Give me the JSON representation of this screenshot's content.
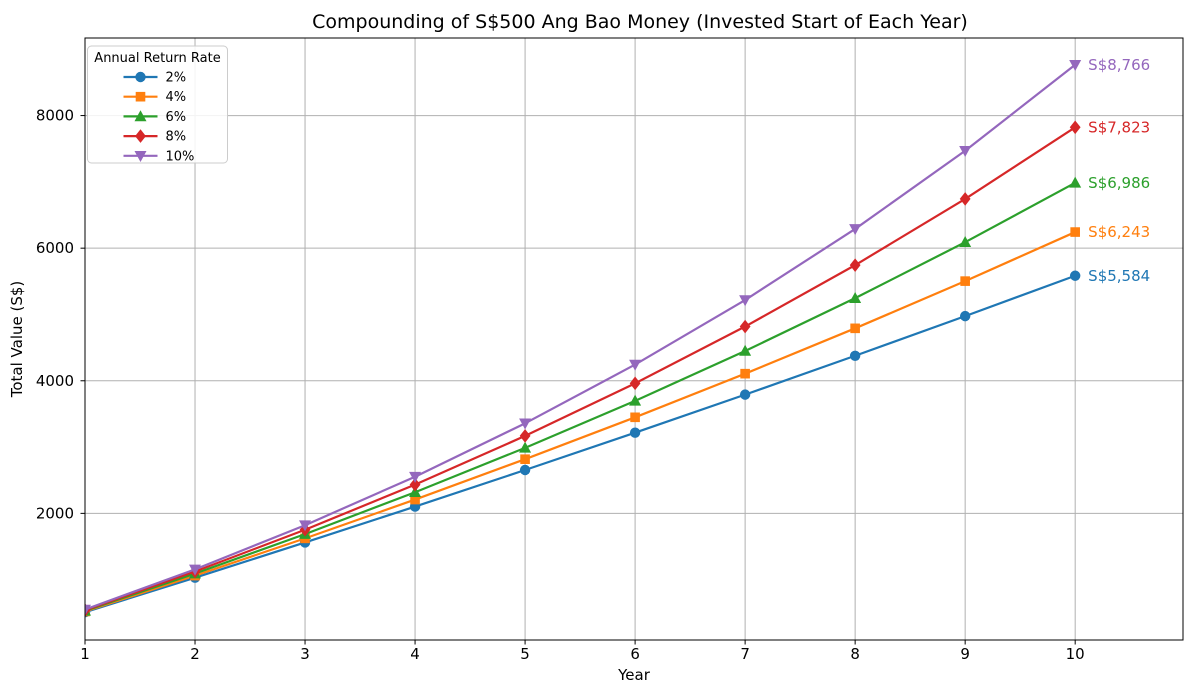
{
  "chart_data": {
    "type": "line",
    "title": "Compounding of S$500 Ang Bao Money (Invested Start of Each Year)",
    "xlabel": "Year",
    "ylabel": "Total Value (S$)",
    "legend_title": "Annual Return Rate",
    "legend_position": "upper left",
    "grid": true,
    "grid_color": "#b0b0b0",
    "spine_color": "#000000",
    "background_color": "#ffffff",
    "x": [
      1,
      2,
      3,
      4,
      5,
      6,
      7,
      8,
      9,
      10
    ],
    "xticks": [
      1,
      2,
      3,
      4,
      5,
      6,
      7,
      8,
      9,
      10
    ],
    "yticks": [
      2000,
      4000,
      6000,
      8000
    ],
    "xlim": [
      1,
      10.98
    ],
    "ylim": [
      90,
      9170
    ],
    "series": [
      {
        "name": "2%",
        "color": "#1f77b4",
        "marker": "circle",
        "values": [
          510,
          1030,
          1561,
          2102,
          2654,
          3217,
          3791,
          4377,
          4975,
          5584
        ],
        "end_label": "S$5,584"
      },
      {
        "name": "4%",
        "color": "#ff7f0e",
        "marker": "square",
        "values": [
          520,
          1061,
          1623,
          2208,
          2817,
          3449,
          4107,
          4791,
          5503,
          6243
        ],
        "end_label": "S$6,243"
      },
      {
        "name": "6%",
        "color": "#2ca02c",
        "marker": "triangle-up",
        "values": [
          530,
          1092,
          1687,
          2319,
          2988,
          3697,
          4449,
          5246,
          6090,
          6986
        ],
        "end_label": "S$6,986"
      },
      {
        "name": "8%",
        "color": "#d62728",
        "marker": "diamond",
        "values": [
          540,
          1123,
          1753,
          2433,
          3168,
          3961,
          4818,
          5744,
          6743,
          7823
        ],
        "end_label": "S$7,823"
      },
      {
        "name": "10%",
        "color": "#9467bd",
        "marker": "triangle-down",
        "values": [
          550,
          1155,
          1821,
          2553,
          3358,
          4244,
          5218,
          6290,
          7469,
          8766
        ],
        "end_label": "S$8,766"
      }
    ]
  }
}
